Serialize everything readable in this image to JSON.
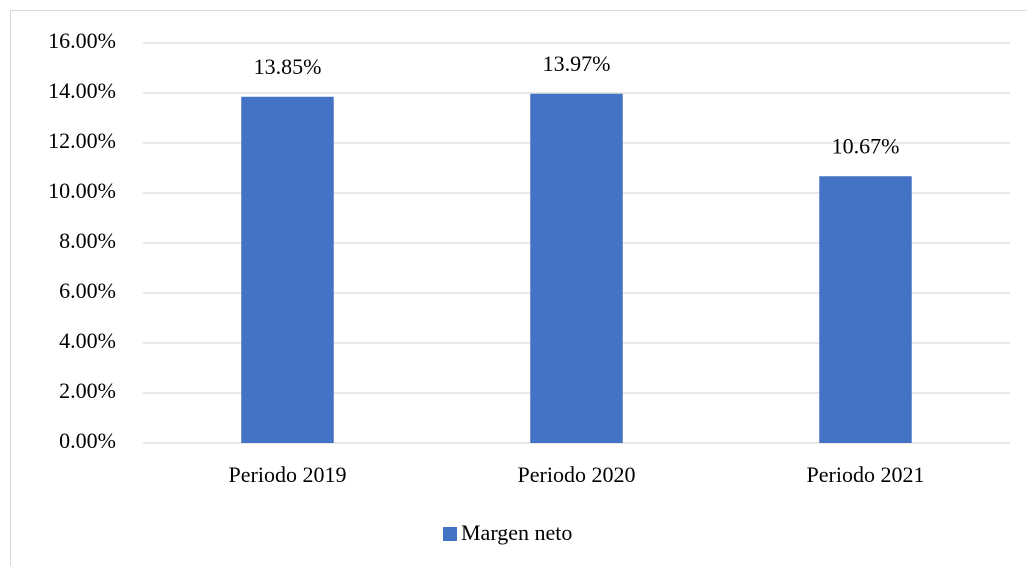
{
  "chart_data": {
    "type": "bar",
    "categories": [
      "Periodo 2019",
      "Periodo 2020",
      "Periodo 2021"
    ],
    "series": [
      {
        "name": "Margen neto",
        "color": "#4472c4",
        "values": [
          13.85,
          13.97,
          10.67
        ],
        "value_labels": [
          "13.85%",
          "13.97%",
          "10.67%"
        ]
      }
    ],
    "ylim": [
      0,
      16
    ],
    "yticks": [
      {
        "value": 0,
        "label": "0.00%"
      },
      {
        "value": 2,
        "label": "2.00%"
      },
      {
        "value": 4,
        "label": "4.00%"
      },
      {
        "value": 6,
        "label": "6.00%"
      },
      {
        "value": 8,
        "label": "8.00%"
      },
      {
        "value": 10,
        "label": "10.00%"
      },
      {
        "value": 12,
        "label": "12.00%"
      },
      {
        "value": 14,
        "label": "14.00%"
      },
      {
        "value": 16,
        "label": "16.00%"
      }
    ],
    "grid": true,
    "legend": "bottom"
  }
}
